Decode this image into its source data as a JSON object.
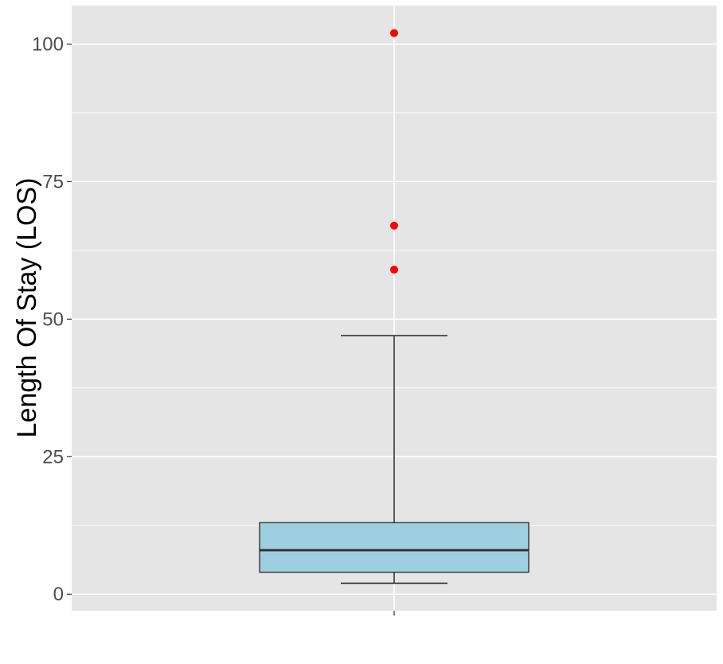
{
  "chart_data": {
    "type": "boxplot",
    "ylabel": "Length Of Stay (LOS)",
    "xlabel": "",
    "ylim": [
      -3,
      107
    ],
    "y_ticks": [
      0,
      25,
      50,
      75,
      100
    ],
    "y_minor_ticks": [
      12.5,
      37.5,
      62.5,
      87.5
    ],
    "grid": true,
    "box": {
      "lower_whisker": 2,
      "q1": 4,
      "median": 8,
      "q3": 13,
      "upper_whisker": 47
    },
    "outliers": [
      59,
      67,
      102
    ],
    "colors": {
      "box_fill": "#9ecfe0",
      "outlier": "#ff0000",
      "panel": "#e5e5e5",
      "grid": "#ffffff",
      "box_line": "#333333"
    }
  }
}
